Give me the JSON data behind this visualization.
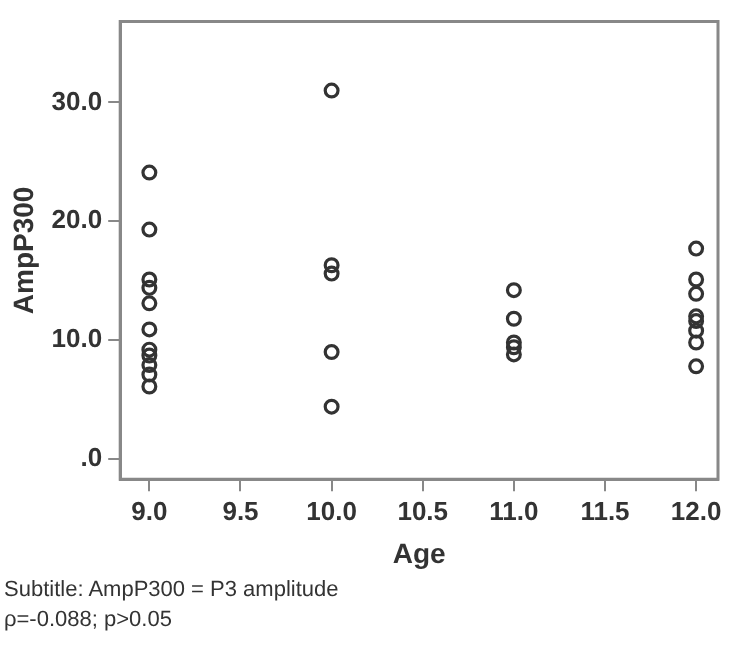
{
  "chart_data": {
    "type": "scatter",
    "xlabel": "Age",
    "ylabel": "AmpP300",
    "series": [
      {
        "color": "#333333",
        "x": [
          9,
          9,
          9,
          9,
          9,
          9,
          9,
          9,
          9,
          9,
          9,
          10,
          10,
          10,
          10,
          10,
          11,
          11,
          11,
          11,
          11,
          12,
          12,
          12,
          12,
          12,
          12,
          12,
          12
        ],
        "values": [
          24.1,
          19.3,
          15.1,
          14.4,
          13.1,
          10.9,
          9.2,
          8.7,
          7.9,
          7.1,
          6.1,
          31.0,
          16.3,
          15.6,
          9.0,
          4.4,
          14.2,
          11.8,
          9.8,
          9.4,
          8.8,
          17.7,
          15.1,
          13.9,
          12.0,
          11.6,
          10.8,
          9.8,
          7.8
        ]
      }
    ],
    "xlim": [
      8.84,
      12.12
    ],
    "xticks": [
      {
        "value": 9,
        "label": "9.0"
      },
      {
        "value": 9.5,
        "label": "9.5"
      },
      {
        "value": 10,
        "label": "10.0"
      },
      {
        "value": 10.5,
        "label": "10.5"
      },
      {
        "value": 11,
        "label": "11.0"
      },
      {
        "value": 11.5,
        "label": "11.5"
      },
      {
        "value": 12,
        "label": "12.0"
      }
    ],
    "ylim": [
      -1.7,
      36.8
    ],
    "yticks": [
      {
        "value": 0,
        "label": ".0"
      },
      {
        "value": 10,
        "label": "10.0"
      },
      {
        "value": 20,
        "label": "20.0"
      },
      {
        "value": 30,
        "label": "30.0"
      }
    ],
    "grid": false,
    "legend": false,
    "marker": "circle",
    "annotations": [
      "Subtitle: AmpP300 = P3 amplitude",
      "ρ=-0.088; p>0.05"
    ]
  }
}
